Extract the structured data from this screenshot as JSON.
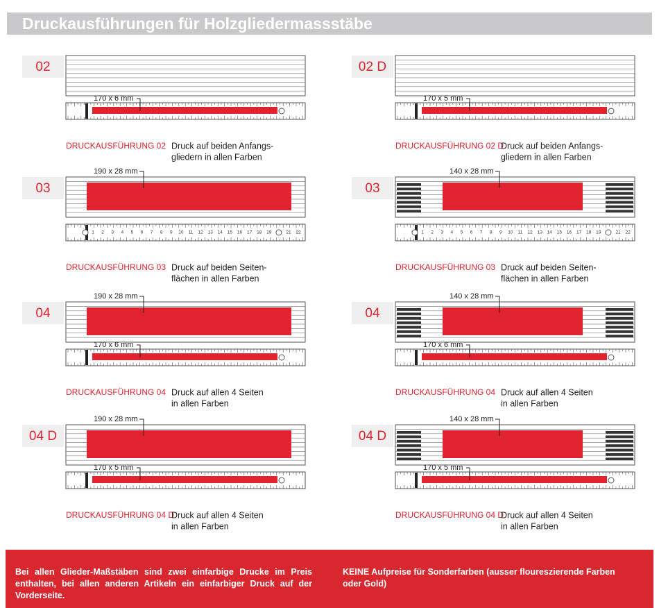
{
  "header": {
    "title": "Druckausführungen für Holzgliedermassstäbe"
  },
  "panels": [
    {
      "code": "02",
      "bottom_label": "170 x 6 mm",
      "variant": "DRUCKAUSFÜHRUNG 02",
      "description": [
        "Druck auf beiden Anfangs-",
        "gliedern in allen Farben"
      ]
    },
    {
      "code": "03",
      "top_label": "190 x 28 mm",
      "scale": [
        1,
        2,
        3,
        4,
        5,
        6,
        7,
        8,
        9,
        10,
        11,
        12,
        13,
        14,
        15,
        16,
        17,
        18,
        19,
        21,
        22
      ],
      "variant": "DRUCKAUSFÜHRUNG 03",
      "description": [
        "Druck auf beiden Seiten-",
        "flächen in allen Farben"
      ]
    },
    {
      "code": "04",
      "top_label": "190 x 28 mm",
      "bottom_label": "170 x 6 mm",
      "variant": "DRUCKAUSFÜHRUNG 04",
      "description": [
        "Druck auf allen 4 Seiten",
        "in allen Farben"
      ]
    },
    {
      "code": "04 D",
      "top_label": "190 x 28 mm",
      "bottom_label": "170 x 5 mm",
      "variant": "DRUCKAUSFÜHRUNG 04 D",
      "description": [
        "Druck auf allen 4 Seiten",
        "in allen Farben"
      ]
    },
    {
      "code": "02 D",
      "bottom_label": "170 x 5 mm",
      "variant": "DRUCKAUSFÜHRUNG 02 D",
      "description": [
        "Druck auf beiden Anfangs-",
        "gliedern in allen Farben"
      ]
    },
    {
      "code": "03",
      "top_label": "140 x 28 mm",
      "scale": [
        1,
        2,
        3,
        4,
        5,
        6,
        7,
        8,
        9,
        10,
        11,
        12,
        13,
        14,
        15,
        16,
        17,
        18,
        19,
        21,
        22
      ],
      "variant": "DRUCKAUSFÜHRUNG 03",
      "description": [
        "Druck auf beiden Seiten-",
        "flächen in allen Farben"
      ]
    },
    {
      "code": "04",
      "top_label": "140 x 28 mm",
      "bottom_label": "170 x 6 mm",
      "variant": "DRUCKAUSFÜHRUNG 04",
      "description": [
        "Druck auf allen 4 Seiten",
        "in allen Farben"
      ]
    },
    {
      "code": "04 D",
      "top_label": "140 x 28 mm",
      "bottom_label": "170 x 5 mm",
      "variant": "DRUCKAUSFÜHRUNG 04 D",
      "description": [
        "Druck auf allen 4 Seiten",
        "in allen Farben"
      ]
    }
  ],
  "footer": {
    "left": "Bei allen Glieder-Maßstäben sind zwei einfarbige Drucke im Preis enthalten, bei allen anderen Artikeln ein einfarbiger Druck auf der Vorderseite.",
    "right": "KEINE Aufpreise für Sonderfarben (ausser floureszierende Farben oder Gold)"
  }
}
